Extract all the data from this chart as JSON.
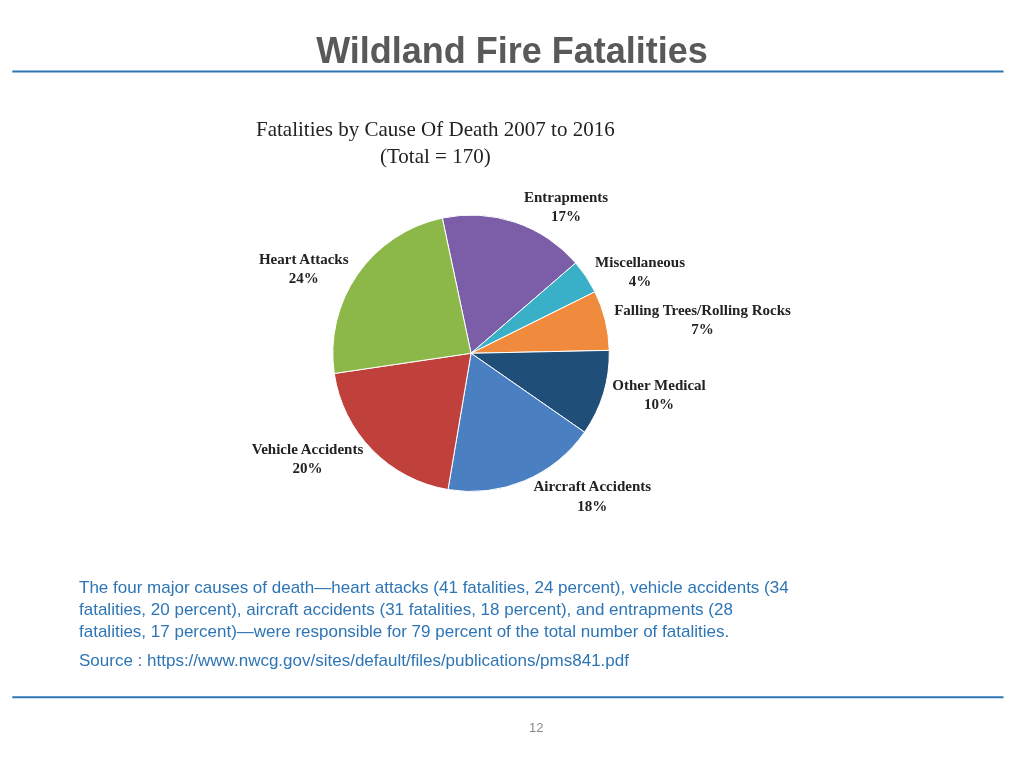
{
  "chart_data": {
    "type": "pie",
    "title": "Wildland Fire Fatalities",
    "subtitle": "Fatalities by Cause Of Death 2007 to 2016\n(Total = 170)",
    "categories": [
      "Entrapments",
      "Miscellaneous",
      "Falling Trees/Rolling Rocks",
      "Other Medical",
      "Aircraft Accidents",
      "Vehicle Accidents",
      "Heart Attacks"
    ],
    "values": [
      17,
      4,
      7,
      10,
      18,
      20,
      24
    ],
    "value_labels": [
      "17%",
      "4%",
      "7%",
      "10%",
      "18%",
      "20%",
      "24%"
    ],
    "colors": [
      "#7b5ea7",
      "#3ab0c8",
      "#f08a3c",
      "#1f4e79",
      "#4a7fc1",
      "#c0413b",
      "#8cb84a"
    ],
    "legend": false,
    "annotations": [
      "The four major causes of death—heart attacks (41 fatalities, 24 percent), vehicle accidents (34 fatalities, 20 percent), aircraft accidents (31 fatalities, 18 percent), and entrapments (28 fatalities, 17 percent)—were responsible for 79 percent of the total number of fatalities.",
      "Source : https://www.nwcg.gov/sites/default/files/publications/pms841.pdf",
      "12"
    ]
  }
}
